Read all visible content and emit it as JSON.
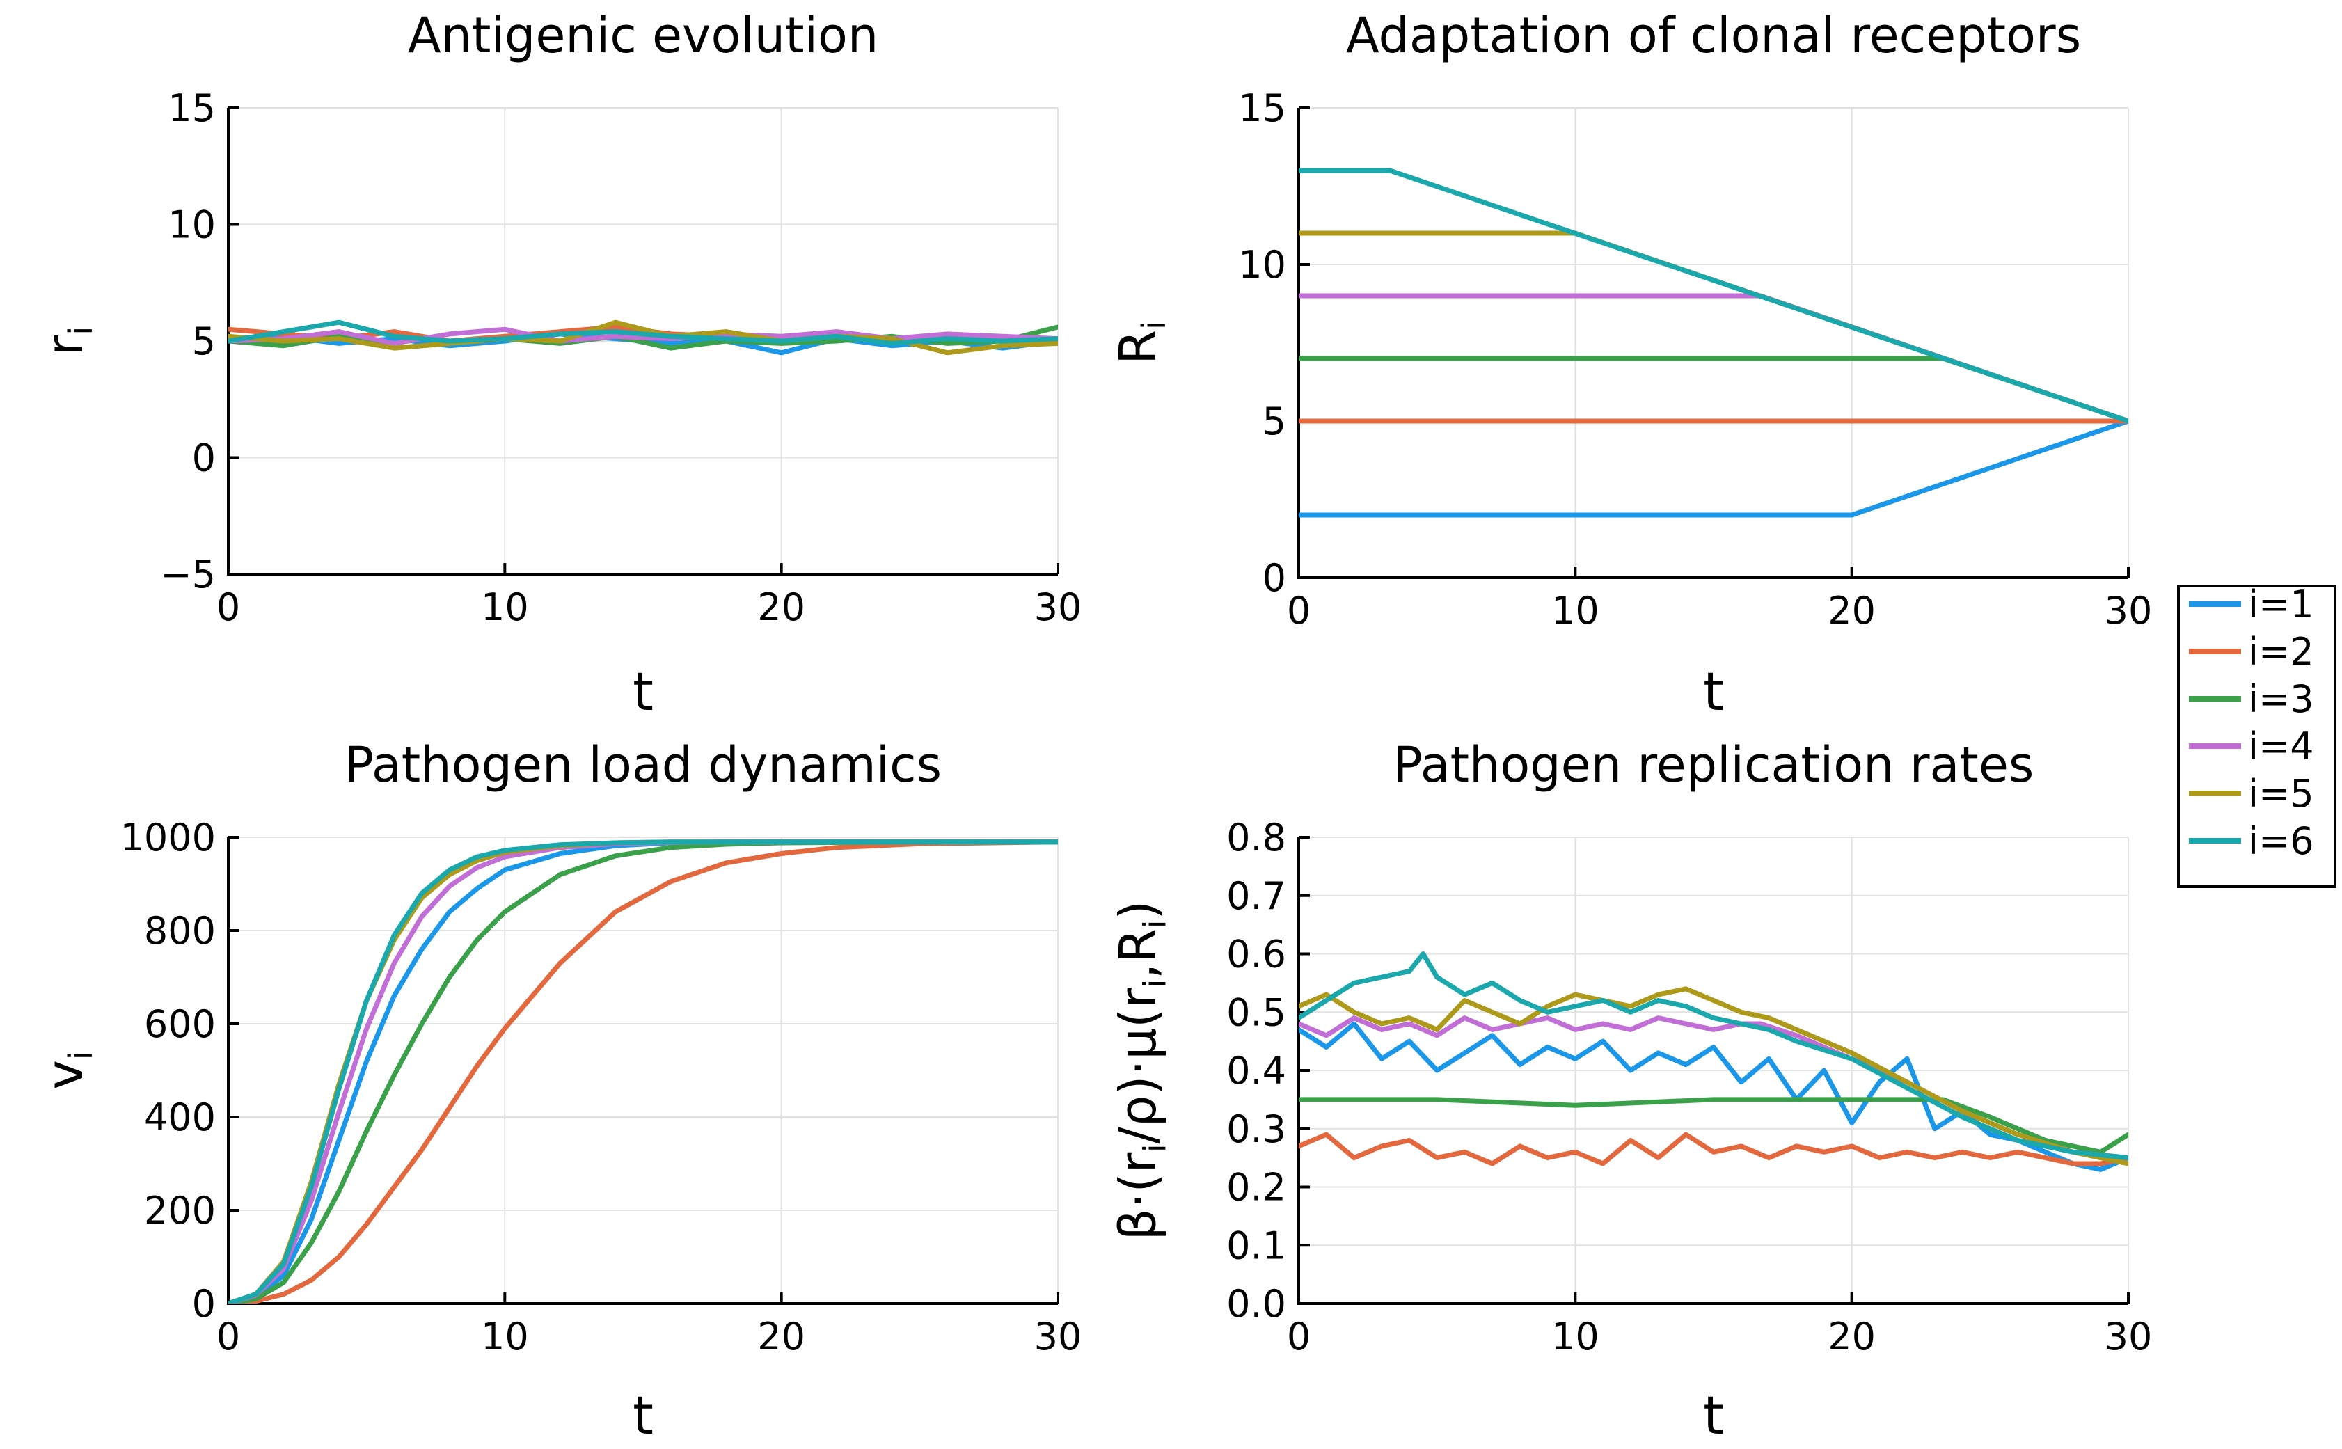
{
  "colors": [
    "#1a97e9",
    "#e3683e",
    "#3aa14a",
    "#c16ed6",
    "#ae9a1a",
    "#1aa8ac"
  ],
  "legend": [
    "i=1",
    "i=2",
    "i=3",
    "i=4",
    "i=5",
    "i=6"
  ],
  "chart_data": [
    {
      "type": "line",
      "title": "Antigenic evolution",
      "xlabel": "t",
      "ylabel": "r",
      "ylabel_sub": "i",
      "xlim": [
        0,
        30
      ],
      "ylim": [
        -5,
        15
      ],
      "xticks": [
        0,
        10,
        20,
        30
      ],
      "yticks": [
        -5,
        0,
        5,
        10,
        15
      ],
      "ytick_labels": [
        "−5",
        "0",
        "5",
        "10",
        "15"
      ],
      "series": [
        {
          "name": "i=1",
          "x": [
            0,
            2,
            4,
            6,
            8,
            10,
            12,
            14,
            16,
            18,
            20,
            22,
            24,
            26,
            28,
            30
          ],
          "values": [
            5.0,
            5.2,
            4.9,
            5.1,
            4.8,
            5.0,
            5.3,
            5.1,
            4.9,
            5.0,
            4.5,
            5.1,
            4.8,
            5.0,
            4.7,
            5.0
          ]
        },
        {
          "name": "i=2",
          "x": [
            0,
            2,
            4,
            6,
            8,
            10,
            12,
            14,
            16,
            18,
            20,
            22,
            24,
            26,
            28,
            30
          ],
          "values": [
            5.5,
            5.3,
            5.1,
            5.4,
            5.0,
            5.2,
            5.4,
            5.6,
            5.3,
            5.2,
            5.1,
            5.3,
            5.0,
            5.2,
            5.0,
            5.1
          ]
        },
        {
          "name": "i=3",
          "x": [
            0,
            2,
            4,
            6,
            8,
            10,
            12,
            14,
            16,
            18,
            20,
            22,
            24,
            26,
            28,
            30
          ],
          "values": [
            5.0,
            4.8,
            5.2,
            4.7,
            4.9,
            5.1,
            4.9,
            5.2,
            4.7,
            5.0,
            4.9,
            5.0,
            5.2,
            4.9,
            5.0,
            5.6
          ]
        },
        {
          "name": "i=4",
          "x": [
            0,
            2,
            4,
            6,
            8,
            10,
            12,
            14,
            16,
            18,
            20,
            22,
            24,
            26,
            28,
            30
          ],
          "values": [
            5.0,
            5.1,
            5.4,
            4.9,
            5.3,
            5.5,
            5.0,
            5.2,
            5.1,
            5.3,
            5.2,
            5.4,
            5.1,
            5.3,
            5.2,
            5.1
          ]
        },
        {
          "name": "i=5",
          "x": [
            0,
            2,
            4,
            6,
            8,
            10,
            12,
            14,
            16,
            18,
            20,
            22,
            24,
            26,
            28,
            30
          ],
          "values": [
            5.2,
            5.0,
            5.1,
            4.7,
            4.9,
            5.1,
            5.0,
            5.8,
            5.2,
            5.4,
            5.0,
            5.2,
            5.1,
            4.5,
            4.8,
            4.9
          ]
        },
        {
          "name": "i=6",
          "x": [
            0,
            2,
            4,
            6,
            8,
            10,
            12,
            14,
            16,
            18,
            20,
            22,
            24,
            26,
            28,
            30
          ],
          "values": [
            5.0,
            5.4,
            5.8,
            5.2,
            5.0,
            5.1,
            5.3,
            5.4,
            5.2,
            5.1,
            5.0,
            5.2,
            4.9,
            5.1,
            5.0,
            5.1
          ]
        }
      ]
    },
    {
      "type": "line",
      "title": "Adaptation of clonal receptors",
      "xlabel": "t",
      "ylabel": "R",
      "ylabel_sub": "i",
      "xlim": [
        0,
        30
      ],
      "ylim": [
        0,
        15
      ],
      "xticks": [
        0,
        10,
        20,
        30
      ],
      "yticks": [
        0,
        5,
        10,
        15
      ],
      "ytick_labels": [
        "0",
        "5",
        "10",
        "15"
      ],
      "series": [
        {
          "name": "i=1",
          "x": [
            0,
            20,
            30
          ],
          "values": [
            2,
            2,
            5
          ]
        },
        {
          "name": "i=2",
          "x": [
            0,
            30
          ],
          "values": [
            5,
            5
          ]
        },
        {
          "name": "i=3",
          "x": [
            0,
            23.3,
            30
          ],
          "values": [
            7,
            7,
            5
          ]
        },
        {
          "name": "i=4",
          "x": [
            0,
            16.7,
            30
          ],
          "values": [
            9,
            9,
            5
          ]
        },
        {
          "name": "i=5",
          "x": [
            0,
            10,
            30
          ],
          "values": [
            11,
            11,
            5
          ]
        },
        {
          "name": "i=6",
          "x": [
            0,
            3.3,
            30
          ],
          "values": [
            13,
            13,
            5
          ]
        }
      ]
    },
    {
      "type": "line",
      "title": "Pathogen load dynamics",
      "xlabel": "t",
      "ylabel": "v",
      "ylabel_sub": "i",
      "xlim": [
        0,
        30
      ],
      "ylim": [
        0,
        1000
      ],
      "xticks": [
        0,
        10,
        20,
        30
      ],
      "yticks": [
        0,
        200,
        400,
        600,
        800,
        1000
      ],
      "ytick_labels": [
        "0",
        "200",
        "400",
        "600",
        "800",
        "1000"
      ],
      "series": [
        {
          "name": "i=1",
          "x": [
            0,
            1,
            2,
            3,
            4,
            5,
            6,
            7,
            8,
            9,
            10,
            12,
            14,
            16,
            18,
            20,
            25,
            30
          ],
          "values": [
            0,
            15,
            60,
            180,
            350,
            520,
            660,
            760,
            840,
            890,
            930,
            965,
            982,
            988,
            990,
            990,
            990,
            990
          ]
        },
        {
          "name": "i=2",
          "x": [
            0,
            1,
            2,
            3,
            4,
            5,
            6,
            7,
            8,
            9,
            10,
            12,
            14,
            16,
            18,
            20,
            22,
            25,
            30
          ],
          "values": [
            0,
            5,
            20,
            50,
            100,
            170,
            250,
            330,
            420,
            510,
            590,
            730,
            840,
            905,
            945,
            965,
            978,
            986,
            990
          ]
        },
        {
          "name": "i=3",
          "x": [
            0,
            1,
            2,
            3,
            4,
            5,
            6,
            7,
            8,
            9,
            10,
            12,
            14,
            16,
            18,
            20,
            25,
            30
          ],
          "values": [
            0,
            10,
            45,
            130,
            240,
            370,
            490,
            600,
            700,
            780,
            840,
            920,
            960,
            978,
            985,
            988,
            990,
            990
          ]
        },
        {
          "name": "i=4",
          "x": [
            0,
            1,
            2,
            3,
            4,
            5,
            6,
            7,
            8,
            9,
            10,
            12,
            14,
            16,
            18,
            20,
            25,
            30
          ],
          "values": [
            0,
            18,
            75,
            220,
            410,
            590,
            730,
            830,
            895,
            935,
            958,
            978,
            986,
            989,
            990,
            990,
            990,
            990
          ]
        },
        {
          "name": "i=5",
          "x": [
            0,
            1,
            2,
            3,
            4,
            5,
            6,
            7,
            8,
            9,
            10,
            12,
            14,
            16,
            18,
            20,
            25,
            30
          ],
          "values": [
            0,
            20,
            90,
            260,
            470,
            650,
            780,
            870,
            920,
            950,
            968,
            982,
            988,
            990,
            990,
            990,
            990,
            990
          ]
        },
        {
          "name": "i=6",
          "x": [
            0,
            1,
            2,
            3,
            4,
            5,
            6,
            7,
            8,
            9,
            10,
            12,
            14,
            16,
            18,
            20,
            25,
            30
          ],
          "values": [
            0,
            20,
            85,
            250,
            460,
            650,
            790,
            880,
            930,
            958,
            972,
            984,
            988,
            990,
            990,
            990,
            990,
            990
          ]
        }
      ]
    },
    {
      "type": "line",
      "title": "Pathogen replication rates",
      "xlabel": "t",
      "ylabel": "β·(r/ρ)·μ(r,R)",
      "ylabel_parts": [
        "β·(r",
        "i",
        "/ρ)·μ(r",
        "i",
        ",R",
        "i",
        ")"
      ],
      "xlim": [
        0,
        30
      ],
      "ylim": [
        0.0,
        0.8
      ],
      "xticks": [
        0,
        10,
        20,
        30
      ],
      "yticks": [
        0.0,
        0.1,
        0.2,
        0.3,
        0.4,
        0.5,
        0.6,
        0.7,
        0.8
      ],
      "ytick_labels": [
        "0.0",
        "0.1",
        "0.2",
        "0.3",
        "0.4",
        "0.5",
        "0.6",
        "0.7",
        "0.8"
      ],
      "series": [
        {
          "name": "i=1",
          "x": [
            0,
            1,
            2,
            3,
            4,
            5,
            6,
            7,
            8,
            9,
            10,
            11,
            12,
            13,
            14,
            15,
            16,
            17,
            18,
            19,
            20,
            21,
            22,
            23,
            24,
            25,
            26,
            27,
            28,
            29,
            30
          ],
          "values": [
            0.47,
            0.44,
            0.48,
            0.42,
            0.45,
            0.4,
            0.43,
            0.46,
            0.41,
            0.44,
            0.42,
            0.45,
            0.4,
            0.43,
            0.41,
            0.44,
            0.38,
            0.42,
            0.35,
            0.4,
            0.31,
            0.38,
            0.42,
            0.3,
            0.33,
            0.29,
            0.28,
            0.26,
            0.24,
            0.23,
            0.25
          ]
        },
        {
          "name": "i=2",
          "x": [
            0,
            1,
            2,
            3,
            4,
            5,
            6,
            7,
            8,
            9,
            10,
            11,
            12,
            13,
            14,
            15,
            16,
            17,
            18,
            19,
            20,
            21,
            22,
            23,
            24,
            25,
            26,
            27,
            28,
            29,
            30
          ],
          "values": [
            0.27,
            0.29,
            0.25,
            0.27,
            0.28,
            0.25,
            0.26,
            0.24,
            0.27,
            0.25,
            0.26,
            0.24,
            0.28,
            0.25,
            0.29,
            0.26,
            0.27,
            0.25,
            0.27,
            0.26,
            0.27,
            0.25,
            0.26,
            0.25,
            0.26,
            0.25,
            0.26,
            0.25,
            0.24,
            0.24,
            0.25
          ]
        },
        {
          "name": "i=3",
          "x": [
            0,
            5,
            10,
            15,
            20,
            22,
            23.3,
            25,
            27,
            29,
            30
          ],
          "values": [
            0.35,
            0.35,
            0.34,
            0.35,
            0.35,
            0.35,
            0.35,
            0.32,
            0.28,
            0.26,
            0.29
          ]
        },
        {
          "name": "i=4",
          "x": [
            0,
            1,
            2,
            3,
            4,
            5,
            6,
            7,
            8,
            9,
            10,
            11,
            12,
            13,
            14,
            15,
            16,
            16.7,
            18,
            20,
            22,
            24,
            26,
            28,
            30
          ],
          "values": [
            0.48,
            0.46,
            0.49,
            0.47,
            0.48,
            0.46,
            0.49,
            0.47,
            0.48,
            0.49,
            0.47,
            0.48,
            0.47,
            0.49,
            0.48,
            0.47,
            0.48,
            0.48,
            0.46,
            0.42,
            0.38,
            0.33,
            0.29,
            0.26,
            0.25
          ]
        },
        {
          "name": "i=5",
          "x": [
            0,
            1,
            2,
            3,
            4,
            5,
            6,
            7,
            8,
            9,
            10,
            11,
            12,
            13,
            14,
            15,
            16,
            17,
            18,
            20,
            22,
            24,
            26,
            28,
            30
          ],
          "values": [
            0.51,
            0.53,
            0.5,
            0.48,
            0.49,
            0.47,
            0.52,
            0.5,
            0.48,
            0.51,
            0.53,
            0.52,
            0.51,
            0.53,
            0.54,
            0.52,
            0.5,
            0.49,
            0.47,
            0.43,
            0.38,
            0.33,
            0.29,
            0.26,
            0.24
          ]
        },
        {
          "name": "i=6",
          "x": [
            0,
            1,
            2,
            3,
            4,
            4.5,
            5,
            6,
            7,
            8,
            9,
            10,
            11,
            12,
            13,
            14,
            15,
            16,
            17,
            18,
            20,
            22,
            24,
            26,
            28,
            30
          ],
          "values": [
            0.49,
            0.52,
            0.55,
            0.56,
            0.57,
            0.6,
            0.56,
            0.53,
            0.55,
            0.52,
            0.5,
            0.51,
            0.52,
            0.5,
            0.52,
            0.51,
            0.49,
            0.48,
            0.47,
            0.45,
            0.42,
            0.37,
            0.32,
            0.28,
            0.26,
            0.25
          ]
        }
      ]
    }
  ]
}
